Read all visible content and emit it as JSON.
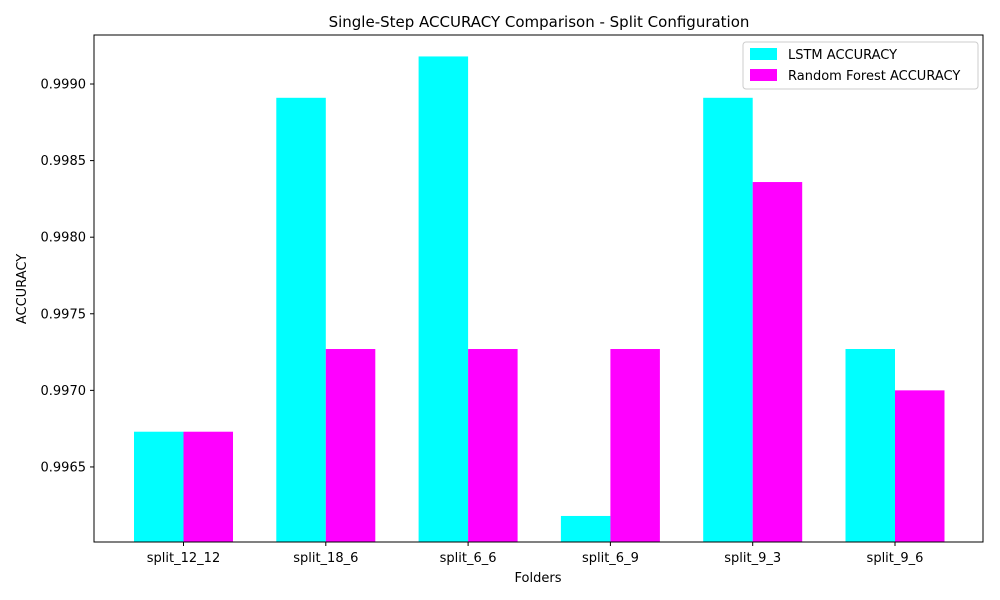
{
  "chart_data": {
    "type": "bar",
    "title": "Single-Step ACCURACY Comparison - Split Configuration",
    "xlabel": "Folders",
    "ylabel": "ACCURACY",
    "categories": [
      "split_12_12",
      "split_18_6",
      "split_6_6",
      "split_6_9",
      "split_9_3",
      "split_9_6"
    ],
    "series": [
      {
        "name": "LSTM ACCURACY",
        "color": "#00ffff",
        "values": [
          0.99673,
          0.99891,
          0.99918,
          0.99618,
          0.99891,
          0.99727
        ]
      },
      {
        "name": "Random Forest ACCURACY",
        "color": "#ff00ff",
        "values": [
          0.99673,
          0.99727,
          0.99727,
          0.99727,
          0.99836,
          0.997
        ]
      }
    ],
    "ylim": [
      0.99601,
      0.99932
    ],
    "yticks": [
      0.9965,
      0.997,
      0.9975,
      0.998,
      0.9985,
      0.999
    ],
    "ytick_labels": [
      "0.9965",
      "0.9970",
      "0.9975",
      "0.9980",
      "0.9985",
      "0.9990"
    ],
    "grid": false,
    "legend_position": "top-right"
  }
}
